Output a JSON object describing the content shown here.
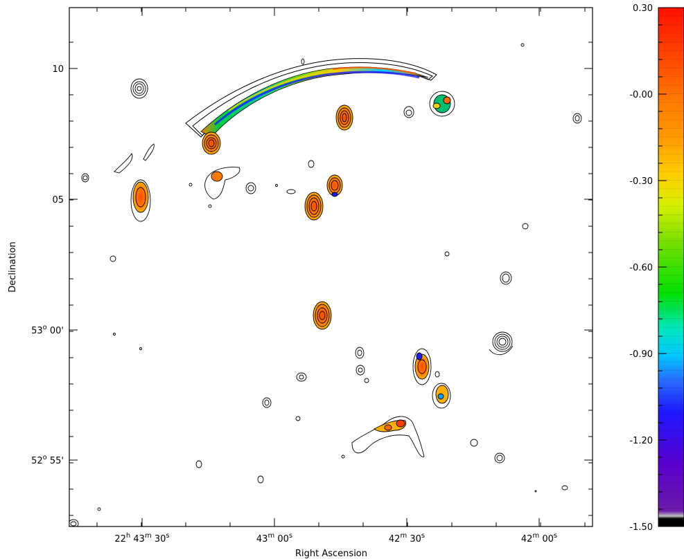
{
  "chart_data": {
    "type": "heatmap",
    "title": "",
    "xlabel": "Right Ascension",
    "ylabel": "Declination",
    "x_ticks": [
      {
        "h": "22",
        "m": "43",
        "s": "30",
        "show_h": true
      },
      {
        "h": "22",
        "m": "43",
        "s": "00",
        "show_h": false
      },
      {
        "h": "22",
        "m": "42",
        "s": "30",
        "show_h": false
      },
      {
        "h": "22",
        "m": "42",
        "s": "00",
        "show_h": false
      }
    ],
    "y_ticks": [
      {
        "deg": "",
        "min": "10",
        "show_deg": false
      },
      {
        "deg": "",
        "min": "05",
        "show_deg": false
      },
      {
        "deg": "53",
        "min": "00",
        "show_deg": true
      },
      {
        "deg": "52",
        "min": "55",
        "show_deg": true
      }
    ],
    "colorbar": {
      "ticks": [
        "0.30",
        "-0.00",
        "-0.30",
        "-0.60",
        "-0.90",
        "-1.20",
        "-1.50"
      ],
      "range": [
        -1.5,
        0.3
      ],
      "colormap": "rainbow (black-purple-blue-cyan-green-yellow-orange-red)"
    },
    "features": {
      "arc_relic": {
        "description_free": true
      },
      "sources_count": 40
    }
  }
}
